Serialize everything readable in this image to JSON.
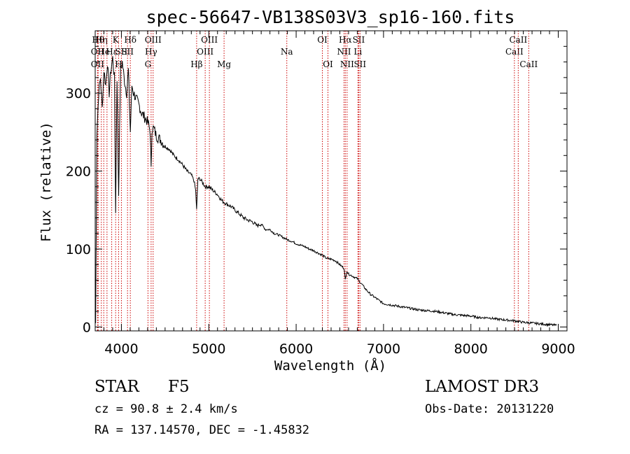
{
  "chart_data": {
    "type": "line",
    "title": "spec-56647-VB138S03V3_sp16-160.fits",
    "xlabel": "Wavelength (Å)",
    "ylabel": "Flux (relative)",
    "xlim": [
      3700,
      9100
    ],
    "ylim": [
      -5,
      380
    ],
    "xticks": [
      4000,
      5000,
      6000,
      7000,
      8000,
      9000
    ],
    "yticks": [
      0,
      100,
      200,
      300
    ],
    "series": [
      {
        "name": "flux",
        "x": [
          3705,
          3720,
          3740,
          3760,
          3780,
          3800,
          3820,
          3840,
          3860,
          3880,
          3900,
          3920,
          3934,
          3950,
          3968,
          3990,
          4010,
          4030,
          4060,
          4080,
          4102,
          4120,
          4140,
          4160,
          4200,
          4230,
          4260,
          4290,
          4310,
          4330,
          4340,
          4350,
          4370,
          4400,
          4450,
          4500,
          4550,
          4600,
          4650,
          4700,
          4750,
          4800,
          4830,
          4850,
          4861,
          4875,
          4900,
          4930,
          4960,
          5000,
          5050,
          5100,
          5150,
          5200,
          5250,
          5300,
          5350,
          5400,
          5450,
          5500,
          5550,
          5600,
          5650,
          5700,
          5750,
          5800,
          5850,
          5900,
          5950,
          6000,
          6050,
          6100,
          6150,
          6200,
          6250,
          6300,
          6350,
          6400,
          6450,
          6500,
          6550,
          6563,
          6580,
          6600,
          6650,
          6700,
          6750,
          6800,
          6850,
          6900,
          6950,
          7000,
          7100,
          7200,
          7300,
          7400,
          7500,
          7600,
          7700,
          7800,
          7900,
          8000,
          8100,
          8200,
          8300,
          8400,
          8500,
          8600,
          8700,
          8800,
          8900,
          8980
        ],
        "values": [
          5,
          250,
          300,
          320,
          280,
          330,
          310,
          340,
          300,
          330,
          345,
          320,
          150,
          320,
          170,
          330,
          340,
          320,
          300,
          330,
          250,
          310,
          300,
          295,
          285,
          275,
          270,
          265,
          260,
          250,
          200,
          255,
          255,
          245,
          240,
          232,
          228,
          220,
          215,
          208,
          200,
          195,
          188,
          175,
          150,
          190,
          190,
          185,
          180,
          180,
          175,
          170,
          162,
          158,
          155,
          150,
          145,
          140,
          137,
          135,
          130,
          132,
          125,
          125,
          120,
          118,
          115,
          112,
          110,
          107,
          105,
          103,
          100,
          98,
          95,
          92,
          88,
          87,
          85,
          80,
          75,
          60,
          72,
          68,
          65,
          62,
          55,
          48,
          42,
          38,
          34,
          30,
          28,
          26,
          24,
          22,
          21,
          20,
          18,
          16,
          15,
          14,
          12,
          12,
          10,
          9,
          8,
          6,
          5,
          4,
          3,
          2
        ]
      }
    ],
    "line_markers": [
      {
        "wavelength": 3734,
        "label": "Hθ",
        "row": 1
      },
      {
        "wavelength": 3727,
        "label": "OII",
        "row": 2
      },
      {
        "wavelength": 3727,
        "label": "OII",
        "row": 3
      },
      {
        "wavelength": 3770,
        "label": "Hη",
        "row": 1
      },
      {
        "wavelength": 3798,
        "label": "He",
        "row": 2
      },
      {
        "wavelength": 3835,
        "label": "",
        "row": 3
      },
      {
        "wavelength": 3889,
        "label": "Hε",
        "row": 2
      },
      {
        "wavelength": 3934,
        "label": "K",
        "row": 1
      },
      {
        "wavelength": 3968,
        "label": "H",
        "row": 3
      },
      {
        "wavelength": 4000,
        "label": "SII",
        "row": 2
      },
      {
        "wavelength": 4102,
        "label": "Hδ",
        "row": 1
      },
      {
        "wavelength": 4070,
        "label": "SII",
        "row": 2
      },
      {
        "wavelength": 4304,
        "label": "G",
        "row": 3
      },
      {
        "wavelength": 4340,
        "label": "Hγ",
        "row": 2
      },
      {
        "wavelength": 4363,
        "label": "OIII",
        "row": 1
      },
      {
        "wavelength": 4861,
        "label": "Hβ",
        "row": 3
      },
      {
        "wavelength": 4959,
        "label": "OIII",
        "row": 2
      },
      {
        "wavelength": 5007,
        "label": "OIII",
        "row": 1
      },
      {
        "wavelength": 5175,
        "label": "Mg",
        "row": 3
      },
      {
        "wavelength": 5893,
        "label": "Na",
        "row": 2
      },
      {
        "wavelength": 6300,
        "label": "OI",
        "row": 1
      },
      {
        "wavelength": 6364,
        "label": "OI",
        "row": 3
      },
      {
        "wavelength": 6548,
        "label": "NII",
        "row": 2
      },
      {
        "wavelength": 6563,
        "label": "Hα",
        "row": 1
      },
      {
        "wavelength": 6583,
        "label": "NII",
        "row": 3
      },
      {
        "wavelength": 6707,
        "label": "Li",
        "row": 2
      },
      {
        "wavelength": 6716,
        "label": "SII",
        "row": 1
      },
      {
        "wavelength": 6731,
        "label": "SII",
        "row": 3
      },
      {
        "wavelength": 8498,
        "label": "CaII",
        "row": 2
      },
      {
        "wavelength": 8542,
        "label": "CaII",
        "row": 1
      },
      {
        "wavelength": 8662,
        "label": "CaII",
        "row": 3
      }
    ]
  },
  "info": {
    "class": "STAR",
    "subclass": "F5",
    "survey": "LAMOST DR3",
    "cz": "cz = 90.8 ± 2.4 km/s",
    "obs_date": "Obs-Date: 20131220",
    "coords": "RA = 137.14570, DEC =  -1.45832"
  },
  "colors": {
    "axis": "#000000",
    "spectrum": "#000000",
    "line_markers": "#cc0000"
  }
}
